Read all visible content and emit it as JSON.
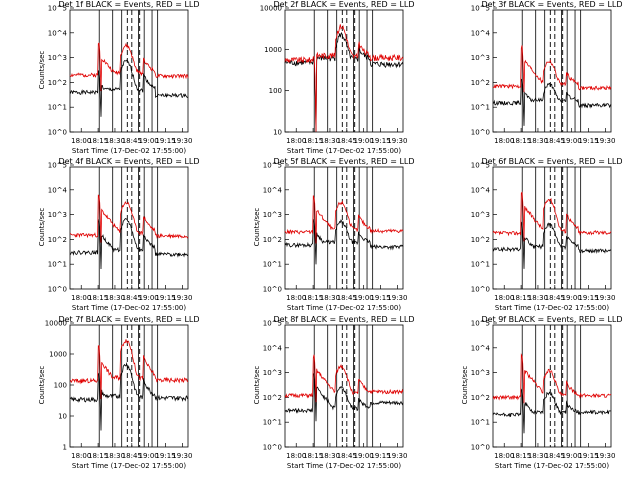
{
  "colors": {
    "black_series": "#000000",
    "red_series": "#e00000",
    "background": "#ffffff"
  },
  "chart_data": [
    {
      "type": "line",
      "title": "Det 1f BLACK = Events, RED = LLD",
      "xlabel": "Start Time (17-Dec-02 17:55:00)",
      "ylabel": "Counts/sec",
      "yscale": "log",
      "ylim": [
        1,
        100000
      ],
      "ytick_labels": [
        "10^0",
        "10^1",
        "10^2",
        "10^3",
        "10^4",
        "10^5"
      ],
      "xtick_labels": [
        "18:00",
        "18:15",
        "18:30",
        "18:45",
        "19:00",
        "19:15",
        "19:30"
      ],
      "series": [
        {
          "color": "#000000",
          "baseline": 40,
          "peak1": 300,
          "peak2": 700,
          "tail": 30
        },
        {
          "color": "#e00000",
          "baseline": 200,
          "peak1": 4000,
          "peak2": 3000,
          "tail": 180
        }
      ]
    },
    {
      "type": "line",
      "title": "Det 2f BLACK = Events, RED = LLD",
      "xlabel": "Start Time (17-Dec-02 17:55:00)",
      "ylabel": "",
      "yscale": "log",
      "ylim": [
        10,
        15000
      ],
      "ytick_labels": [
        "10",
        "100",
        "1000",
        "10000"
      ],
      "xtick_labels": [
        "18:00",
        "18:15",
        "18:30",
        "18:45",
        "19:00",
        "19:15",
        "19:30"
      ],
      "series": [
        {
          "color": "#000000",
          "baseline": 600,
          "peak1": 800,
          "peak2": 3000,
          "tail": 550
        },
        {
          "color": "#e00000",
          "baseline": 700,
          "peak1": 1000,
          "peak2": 5000,
          "tail": 800
        }
      ]
    },
    {
      "type": "line",
      "title": "Det 3f BLACK = Events, RED = LLD",
      "xlabel": "",
      "ylabel": "",
      "yscale": "log",
      "ylim": [
        1,
        100000
      ],
      "ytick_labels": [
        "10^0",
        "10^1",
        "10^2",
        "10^3",
        "10^4",
        "10^5"
      ],
      "xtick_labels": [
        "18:00",
        "18:15",
        "18:30",
        "18:45",
        "19:00",
        "19:15",
        "19:30"
      ],
      "series": [
        {
          "color": "#000000",
          "baseline": 15,
          "peak1": 150,
          "peak2": 80,
          "tail": 12
        },
        {
          "color": "#e00000",
          "baseline": 70,
          "peak1": 3000,
          "peak2": 700,
          "tail": 60
        }
      ]
    },
    {
      "type": "line",
      "title": "Det 4f BLACK = Events, RED = LLD",
      "xlabel": "Start Time (17-Dec-02 17:55:00)",
      "ylabel": "Counts/sec",
      "yscale": "log",
      "ylim": [
        1,
        100000
      ],
      "ytick_labels": [
        "10^0",
        "10^1",
        "10^2",
        "10^3",
        "10^4",
        "10^5"
      ],
      "xtick_labels": [
        "18:00",
        "18:15",
        "18:30",
        "18:45",
        "19:00",
        "19:15",
        "19:30"
      ],
      "series": [
        {
          "color": "#000000",
          "baseline": 30,
          "peak1": 600,
          "peak2": 600,
          "tail": 25
        },
        {
          "color": "#e00000",
          "baseline": 150,
          "peak1": 6000,
          "peak2": 3000,
          "tail": 140
        }
      ]
    },
    {
      "type": "line",
      "title": "Det 5f BLACK = Events, RED = LLD",
      "xlabel": "Start Time (17-Dec-02 17:55:00)",
      "ylabel": "Counts/sec",
      "yscale": "log",
      "ylim": [
        1,
        100000
      ],
      "ytick_labels": [
        "10^0",
        "10^1",
        "10^2",
        "10^3",
        "10^4",
        "10^5"
      ],
      "xtick_labels": [
        "18:00",
        "18:15",
        "18:30",
        "18:45",
        "19:00",
        "19:15",
        "19:30"
      ],
      "series": [
        {
          "color": "#000000",
          "baseline": 60,
          "peak1": 700,
          "peak2": 500,
          "tail": 50
        },
        {
          "color": "#e00000",
          "baseline": 200,
          "peak1": 6000,
          "peak2": 3000,
          "tail": 220
        }
      ]
    },
    {
      "type": "line",
      "title": "Det 6f BLACK = Events, RED = LLD",
      "xlabel": "Start Time (17-Dec-02 17:55:00)",
      "ylabel": "",
      "yscale": "log",
      "ylim": [
        1,
        100000
      ],
      "ytick_labels": [
        "10^0",
        "10^1",
        "10^2",
        "10^3",
        "10^4",
        "10^5"
      ],
      "xtick_labels": [
        "18:00",
        "18:15",
        "18:30",
        "18:45",
        "19:00",
        "19:15",
        "19:30"
      ],
      "series": [
        {
          "color": "#000000",
          "baseline": 40,
          "peak1": 500,
          "peak2": 400,
          "tail": 35
        },
        {
          "color": "#e00000",
          "baseline": 180,
          "peak1": 8000,
          "peak2": 4000,
          "tail": 190
        }
      ]
    },
    {
      "type": "line",
      "title": "Det 7f BLACK = Events, RED = LLD",
      "xlabel": "Start Time (17-Dec-02 17:55:00)",
      "ylabel": "Counts/sec",
      "yscale": "log",
      "ylim": [
        1,
        15000
      ],
      "ytick_labels": [
        "1",
        "10",
        "100",
        "1000",
        "10000"
      ],
      "xtick_labels": [
        "18:00",
        "18:15",
        "18:30",
        "18:45",
        "19:00",
        "19:15",
        "19:30"
      ],
      "series": [
        {
          "color": "#000000",
          "baseline": 40,
          "peak1": 300,
          "peak2": 600,
          "tail": 45
        },
        {
          "color": "#e00000",
          "baseline": 170,
          "peak1": 3000,
          "peak2": 4000,
          "tail": 180
        }
      ]
    },
    {
      "type": "line",
      "title": "Det 8f BLACK = Events, RED = LLD",
      "xlabel": "Start Time (17-Dec-02 17:55:00)",
      "ylabel": "Counts/sec",
      "yscale": "log",
      "ylim": [
        1,
        100000
      ],
      "ytick_labels": [
        "10^0",
        "10^1",
        "10^2",
        "10^3",
        "10^4",
        "10^5"
      ],
      "xtick_labels": [
        "18:00",
        "18:15",
        "18:30",
        "18:45",
        "19:00",
        "19:15",
        "19:30"
      ],
      "series": [
        {
          "color": "#000000",
          "baseline": 30,
          "peak1": 1000,
          "peak2": 250,
          "tail": 60
        },
        {
          "color": "#e00000",
          "baseline": 120,
          "peak1": 5000,
          "peak2": 1800,
          "tail": 170
        }
      ]
    },
    {
      "type": "line",
      "title": "Det 9f BLACK = Events, RED = LLD",
      "xlabel": "Start Time (17-Dec-02 17:55:00)",
      "ylabel": "Counts/sec",
      "yscale": "log",
      "ylim": [
        1,
        100000
      ],
      "ytick_labels": [
        "10^0",
        "10^1",
        "10^2",
        "10^3",
        "10^4",
        "10^5"
      ],
      "xtick_labels": [
        "18:00",
        "18:15",
        "18:30",
        "18:45",
        "19:00",
        "19:15",
        "19:30"
      ],
      "series": [
        {
          "color": "#000000",
          "baseline": 20,
          "peak1": 250,
          "peak2": 150,
          "tail": 25
        },
        {
          "color": "#e00000",
          "baseline": 100,
          "peak1": 5000,
          "peak2": 1200,
          "tail": 120
        }
      ]
    }
  ]
}
